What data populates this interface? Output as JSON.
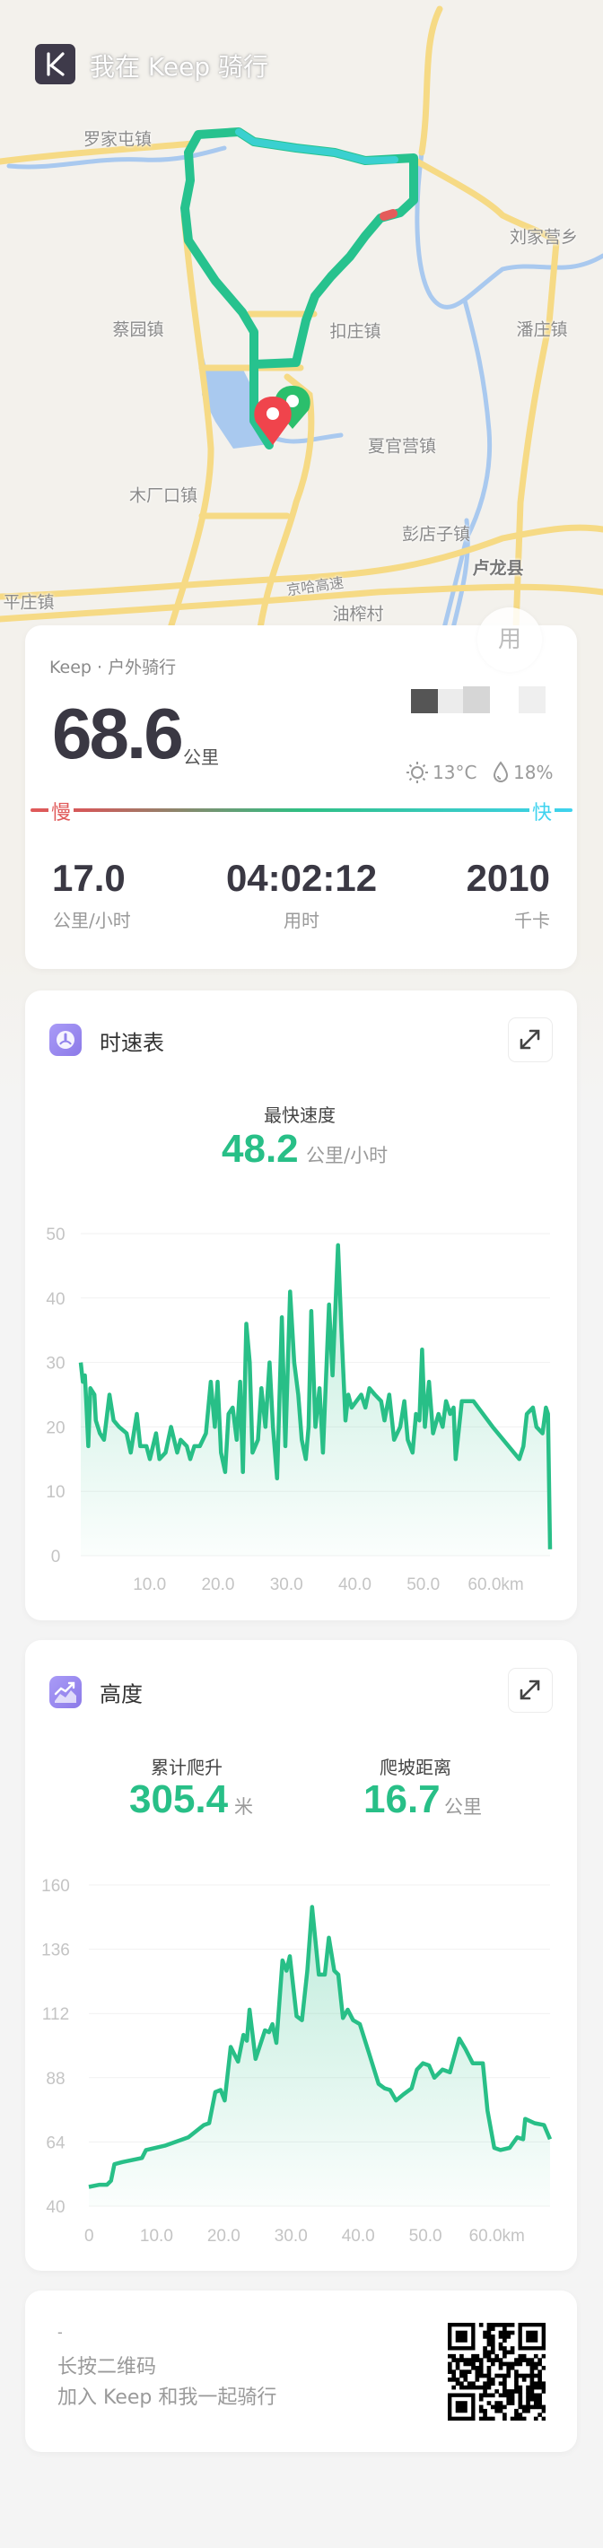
{
  "header": {
    "title": "我在 Keep 骑行",
    "logo_icon": "keep-k-logo"
  },
  "map": {
    "labels": [
      "罗家屯镇",
      "刘家营乡",
      "蔡园镇",
      "扣庄镇",
      "潘庄镇",
      "夏官营镇",
      "木厂口镇",
      "彭店子镇",
      "卢龙县",
      "京哈高速",
      "平庄镇",
      "油榨村"
    ],
    "route_color": "#2fc49a",
    "start_pin_color": "#2bbf6c",
    "end_pin_color": "#f0444c"
  },
  "summary": {
    "source": "Keep · 户外骑行",
    "avatar_text": "用",
    "distance": "68.6",
    "distance_unit": "公里",
    "weather": {
      "temperature": "13°C",
      "humidity": "18%",
      "temp_icon": "sun-icon",
      "humidity_icon": "drop-icon"
    },
    "speed_legend": {
      "slow": "慢",
      "fast": "快",
      "slow_color": "#e05a5a",
      "mid_color": "#2fbf83",
      "fast_color": "#3fd3ef"
    },
    "stats": [
      {
        "value": "17.0",
        "label": "公里/小时"
      },
      {
        "value": "04:02:12",
        "label": "用时"
      },
      {
        "value": "2010",
        "label": "千卡"
      }
    ]
  },
  "speed_card": {
    "title": "时速表",
    "icon": "speedometer-icon",
    "max_label": "最快速度",
    "max_value": "48.2",
    "max_unit": "公里/小时"
  },
  "altitude_card": {
    "title": "高度",
    "icon": "elevation-chart-icon",
    "climb_label": "累计爬升",
    "climb_value": "305.4",
    "climb_unit": "米",
    "slope_label": "爬坡距离",
    "slope_value": "16.7",
    "slope_unit": "公里"
  },
  "chart_data": [
    {
      "type": "area",
      "color": "#28bf87",
      "ylim": [
        0,
        50
      ],
      "yticks": [
        "0",
        "10",
        "20",
        "30",
        "40",
        "50"
      ],
      "xticks": [
        {
          "v": 10,
          "label": "10.0"
        },
        {
          "v": 20,
          "label": "20.0"
        },
        {
          "v": 30,
          "label": "30.0"
        },
        {
          "v": 40,
          "label": "40.0"
        },
        {
          "v": 50,
          "label": "50.0"
        },
        {
          "v": 60,
          "label": "60.0km"
        }
      ],
      "xlim": [
        0,
        68.6
      ],
      "grid": true,
      "x": [
        0,
        0.3,
        0.6,
        0.8,
        1.1,
        1.4,
        2.0,
        2.2,
        2.8,
        3.4,
        4.2,
        4.8,
        5.6,
        6.7,
        7.3,
        8.2,
        8.7,
        9.6,
        10.1,
        11.0,
        11.5,
        12.4,
        13.2,
        14.1,
        14.6,
        15.5,
        16.0,
        16.6,
        17.4,
        18.3,
        19.0,
        19.6,
        20.0,
        20.5,
        21.1,
        21.6,
        22.2,
        22.8,
        23.3,
        23.7,
        24.2,
        24.7,
        25.1,
        25.9,
        26.4,
        27.0,
        27.6,
        28.1,
        28.7,
        29.4,
        29.9,
        30.6,
        31.2,
        31.8,
        32.3,
        32.9,
        33.3,
        33.7,
        34.3,
        34.9,
        35.4,
        36.3,
        36.8,
        37.6,
        38.1,
        38.7,
        39.1,
        39.6,
        41.0,
        41.6,
        42.2,
        43.0,
        43.9,
        44.4,
        45.1,
        45.8,
        46.7,
        47.3,
        47.8,
        48.5,
        49.0,
        49.5,
        49.9,
        50.3,
        50.9,
        51.5,
        52.3,
        52.9,
        53.4,
        54.0,
        54.5,
        54.8,
        55.7,
        57.4,
        60.2,
        64.1,
        64.7,
        65.2,
        66.1,
        66.6,
        67.5,
        68.0,
        68.3,
        68.6
      ],
      "y": [
        30,
        27,
        28,
        24,
        17,
        26,
        25,
        21,
        19,
        18,
        25,
        21,
        20,
        19,
        16,
        22,
        17,
        17,
        15,
        19,
        15,
        16,
        20,
        16,
        18,
        17,
        15,
        17,
        17,
        19,
        27,
        20,
        27,
        16,
        13,
        22,
        23,
        18,
        27,
        13,
        36,
        30,
        16,
        18,
        26,
        20,
        30,
        20,
        12,
        37,
        17,
        41,
        30,
        25,
        18,
        15,
        20,
        38,
        20,
        26,
        16,
        39,
        28,
        48.2,
        35,
        21,
        25,
        23,
        25,
        23,
        26,
        25,
        24,
        21,
        25,
        18,
        20,
        24,
        18,
        16,
        22,
        21,
        32,
        20,
        27,
        19,
        22,
        20,
        24,
        22,
        23,
        15,
        24,
        24,
        20,
        15,
        17,
        22,
        23,
        20,
        19,
        23,
        22,
        1
      ]
    },
    {
      "type": "area",
      "color": "#28bf87",
      "ylim": [
        40,
        160
      ],
      "yticks": [
        "40",
        "64",
        "88",
        "112",
        "136",
        "160"
      ],
      "xticks": [
        {
          "v": 0,
          "label": "0"
        },
        {
          "v": 10,
          "label": "10.0"
        },
        {
          "v": 20,
          "label": "20.0"
        },
        {
          "v": 30,
          "label": "30.0"
        },
        {
          "v": 40,
          "label": "40.0"
        },
        {
          "v": 50,
          "label": "50.0"
        },
        {
          "v": 60,
          "label": "60.0km"
        }
      ],
      "xlim": [
        0,
        68.6
      ],
      "grid": true,
      "x": [
        0,
        1.6,
        2.7,
        3.3,
        3.8,
        5.0,
        7.9,
        8.5,
        11.3,
        14.8,
        17.1,
        17.9,
        18.8,
        19.6,
        20.2,
        21.1,
        22.2,
        23.0,
        23.5,
        23.9,
        24.8,
        26.2,
        26.8,
        27.3,
        27.9,
        28.8,
        29.4,
        29.9,
        30.9,
        31.7,
        32.5,
        33.2,
        34.2,
        35.1,
        35.7,
        36.5,
        37.1,
        37.8,
        38.5,
        39.3,
        40.3,
        41.7,
        43.1,
        44.0,
        44.8,
        45.7,
        46.8,
        48.0,
        48.8,
        49.7,
        50.6,
        51.4,
        52.6,
        53.7,
        55.1,
        56.0,
        57.1,
        58.6,
        59.3,
        60.3,
        61.2,
        62.6,
        63.7,
        64.6,
        64.9,
        66.3,
        67.7,
        68.6
      ],
      "y": [
        47.2,
        48,
        48,
        49.5,
        55.7,
        56.5,
        58,
        61,
        62.6,
        65.7,
        70.3,
        71,
        82.6,
        83.4,
        79.5,
        99.5,
        94,
        104,
        101.8,
        113.4,
        95,
        105.7,
        105,
        108,
        101,
        131.8,
        128,
        133.4,
        111,
        109.5,
        128,
        151.8,
        126.5,
        126.5,
        140.3,
        128,
        126.5,
        110.3,
        113.4,
        109.5,
        108,
        97,
        85.7,
        84,
        83.4,
        79.5,
        81.8,
        84,
        91,
        93.4,
        92.6,
        88,
        91,
        90,
        102.6,
        98.8,
        93.4,
        93.4,
        75.7,
        61.8,
        61,
        61.8,
        65.7,
        65,
        72.6,
        71,
        70.3,
        65
      ]
    }
  ],
  "footer": {
    "dash": "-",
    "line1": "长按二维码",
    "line2": "加入 Keep 和我一起骑行",
    "qr_icon": "qr-code"
  }
}
